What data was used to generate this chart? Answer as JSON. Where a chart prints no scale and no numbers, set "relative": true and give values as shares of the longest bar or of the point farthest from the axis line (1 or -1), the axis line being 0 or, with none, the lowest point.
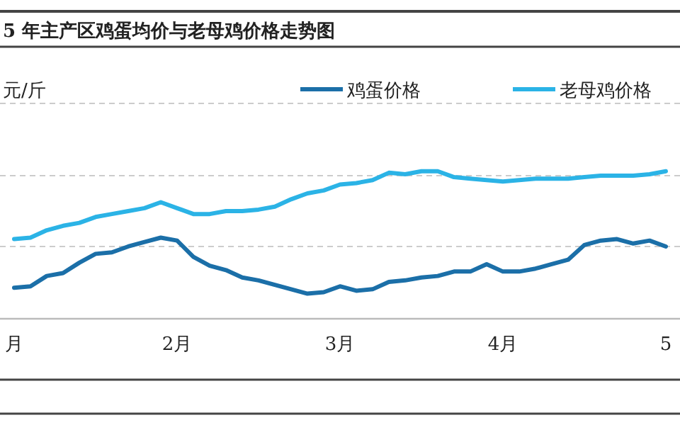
{
  "chart_data": {
    "type": "line",
    "title": "5 年主产区鸡蛋均价与老母鸡价格走势图",
    "ylabel": "元/斤",
    "relative": true,
    "ref_lines": [
      {
        "axis": "y",
        "value": 0.49,
        "color": "#cccccc",
        "line_style": "dashed"
      },
      {
        "axis": "y",
        "value": 0.97,
        "color": "#cccccc",
        "line_style": "dashed"
      },
      {
        "axis": "y",
        "value": 1.46,
        "color": "#cccccc",
        "line_style": "dashed"
      }
    ],
    "legend": "top right",
    "marker": "none",
    "line_style": "solid",
    "categories": [
      "月",
      null,
      null,
      null,
      null,
      null,
      null,
      null,
      null,
      null,
      "2月",
      null,
      null,
      null,
      null,
      null,
      null,
      null,
      null,
      null,
      "3月",
      null,
      null,
      null,
      null,
      null,
      null,
      null,
      null,
      null,
      "4月",
      null,
      null,
      null,
      null,
      null,
      null,
      null,
      null,
      null,
      "5"
    ],
    "series": [
      {
        "name": "鸡蛋价格",
        "color": "#1b6fa8",
        "values": [
          0.21,
          0.22,
          0.29,
          0.31,
          0.38,
          0.44,
          0.45,
          0.49,
          0.52,
          0.55,
          0.53,
          0.42,
          0.36,
          0.33,
          0.28,
          0.26,
          0.23,
          0.2,
          0.17,
          0.18,
          0.22,
          0.19,
          0.2,
          0.25,
          0.26,
          0.28,
          0.29,
          0.32,
          0.32,
          0.37,
          0.32,
          0.32,
          0.34,
          0.37,
          0.4,
          0.5,
          0.53,
          0.54,
          0.51,
          0.53,
          0.49
        ]
      },
      {
        "name": "老母鸡价格",
        "color": "#2bb3e6",
        "values": [
          0.54,
          0.55,
          0.6,
          0.63,
          0.65,
          0.69,
          0.71,
          0.73,
          0.75,
          0.79,
          0.75,
          0.71,
          0.71,
          0.73,
          0.73,
          0.74,
          0.76,
          0.81,
          0.85,
          0.87,
          0.91,
          0.92,
          0.94,
          0.99,
          0.98,
          1.0,
          1.0,
          0.96,
          0.95,
          0.94,
          0.93,
          0.94,
          0.95,
          0.95,
          0.95,
          0.96,
          0.97,
          0.97,
          0.97,
          0.98,
          1.0
        ]
      }
    ]
  }
}
